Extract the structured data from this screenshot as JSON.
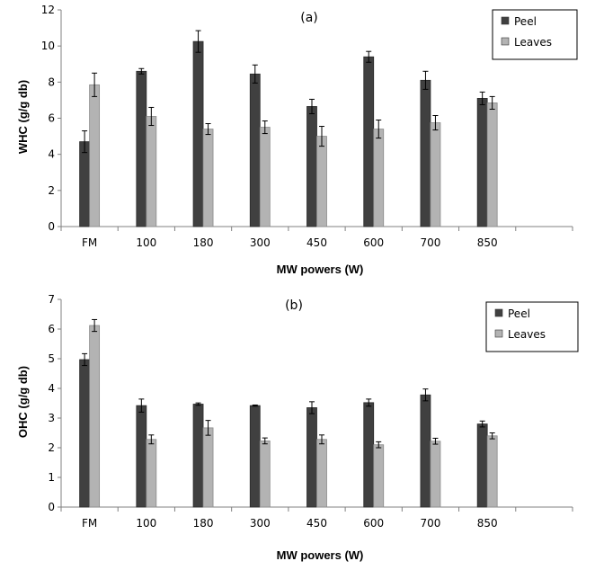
{
  "chart_data": [
    {
      "type": "bar",
      "panel_label": "(a)",
      "categories": [
        "FM",
        "100",
        "180",
        "300",
        "450",
        "600",
        "700",
        "850"
      ],
      "series": [
        {
          "name": "Peel",
          "values": [
            4.7,
            8.6,
            10.25,
            8.45,
            6.65,
            9.4,
            8.1,
            7.1
          ],
          "errors": [
            0.6,
            0.15,
            0.6,
            0.5,
            0.4,
            0.3,
            0.5,
            0.35
          ]
        },
        {
          "name": "Leaves",
          "values": [
            7.85,
            6.1,
            5.4,
            5.5,
            5.0,
            5.4,
            5.75,
            6.85
          ],
          "errors": [
            0.65,
            0.5,
            0.3,
            0.35,
            0.55,
            0.5,
            0.4,
            0.35
          ]
        }
      ],
      "colors": {
        "Peel": "#404040",
        "Leaves": "#b3b3b3"
      },
      "xlabel": "MW powers  (W)",
      "ylabel": "WHC (g/g db)",
      "ylim": [
        0,
        12
      ],
      "yticks": [
        "0",
        "2",
        "4",
        "6",
        "8",
        "10",
        "12"
      ],
      "legend": "top-right",
      "grid": false
    },
    {
      "type": "bar",
      "panel_label": "(b)",
      "categories": [
        "FM",
        "100",
        "180",
        "300",
        "450",
        "600",
        "700",
        "850"
      ],
      "series": [
        {
          "name": "Peel",
          "values": [
            4.97,
            3.42,
            3.47,
            3.42,
            3.35,
            3.52,
            3.78,
            2.8
          ],
          "errors": [
            0.2,
            0.22,
            0.04,
            0.02,
            0.2,
            0.12,
            0.2,
            0.1
          ]
        },
        {
          "name": "Leaves",
          "values": [
            6.12,
            2.28,
            2.67,
            2.23,
            2.28,
            2.1,
            2.22,
            2.4
          ],
          "errors": [
            0.2,
            0.15,
            0.25,
            0.1,
            0.15,
            0.1,
            0.1,
            0.1
          ]
        }
      ],
      "colors": {
        "Peel": "#404040",
        "Leaves": "#b3b3b3"
      },
      "xlabel": "MW powers  (W)",
      "ylabel": "OHC (g/g db)",
      "ylim": [
        0,
        7
      ],
      "yticks": [
        "0",
        "1",
        "2",
        "3",
        "4",
        "5",
        "6",
        "7"
      ],
      "legend": "top-right",
      "grid": false
    }
  ]
}
